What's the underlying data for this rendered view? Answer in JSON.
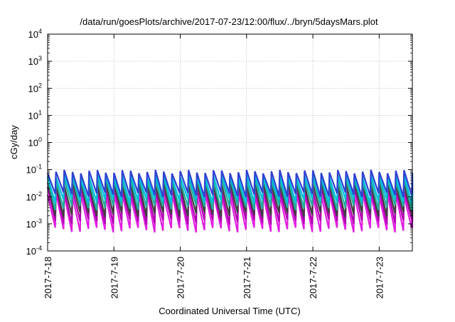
{
  "chart_data": {
    "type": "line",
    "title": "/data/run/goesPlots/archive/2017-07-23/12:00/flux/../bryn/5daysMars.plot",
    "xlabel": "Coordinated Universal Time (UTC)",
    "ylabel": "cGy/day",
    "yscale": "log",
    "ylim": [
      0.0001,
      10000
    ],
    "xlim": [
      "2017-07-18",
      "2017-07-23 12:00"
    ],
    "x_tick_labels": [
      "2017-7-18",
      "2017-7-19",
      "2017-7-20",
      "2017-7-21",
      "2017-7-22",
      "2017-7-23"
    ],
    "y_tick_exponents": [
      -4,
      -3,
      -2,
      -1,
      0,
      1,
      2,
      3,
      4
    ],
    "y_tick_base": "10",
    "grid": true,
    "legend": "none",
    "sawtooth_period_hours": 3,
    "series": [
      {
        "color": "#e020e0",
        "peak": 0.012,
        "trough": 0.0006
      },
      {
        "color": "#b000b0",
        "peak": 0.02,
        "trough": 0.0012
      },
      {
        "color": "#404040",
        "peak": 0.03,
        "trough": 0.0022
      },
      {
        "color": "#20b0a0",
        "peak": 0.045,
        "trough": 0.004
      },
      {
        "color": "#00c0e0",
        "peak": 0.06,
        "trough": 0.007
      },
      {
        "color": "#3040d0",
        "peak": 0.085,
        "trough": 0.012
      }
    ]
  }
}
